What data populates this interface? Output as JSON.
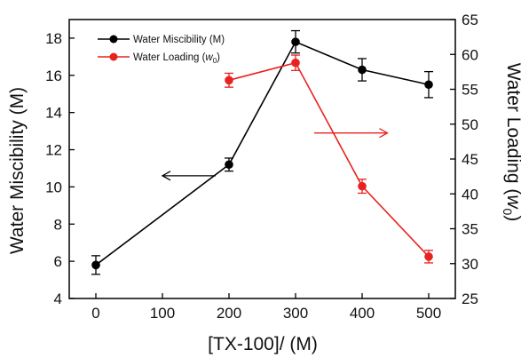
{
  "chart_data": {
    "type": "line",
    "xlabel": "[TX-100]/ (M)",
    "ylabel_left": "Water Miscibility (M)",
    "ylabel_right_main": "Water Loading (",
    "ylabel_right_w": "w",
    "ylabel_right_sub": "0",
    "ylabel_right_close": ")",
    "xlim": [
      -40,
      540
    ],
    "ylim_left": [
      4,
      19
    ],
    "ylim_right": [
      25,
      65
    ],
    "x_ticks": [
      0,
      100,
      200,
      300,
      400,
      500
    ],
    "y_left_ticks": [
      4,
      6,
      8,
      10,
      12,
      14,
      16,
      18
    ],
    "y_right_ticks": [
      25,
      30,
      35,
      40,
      45,
      50,
      55,
      60,
      65
    ],
    "legend_position": "top-left",
    "series": [
      {
        "name": "Water Miscibility (M)",
        "axis": "left",
        "color": "#000000",
        "x": [
          0,
          200,
          300,
          400,
          500
        ],
        "y": [
          5.8,
          11.2,
          17.8,
          16.3,
          15.5
        ],
        "err": [
          0.5,
          0.35,
          0.6,
          0.6,
          0.7
        ]
      },
      {
        "name": "Water Loading (w0)",
        "legend_main": "Water Loading (",
        "legend_w": "w",
        "legend_sub": "0",
        "legend_close": ")",
        "axis": "right",
        "color": "#e8231f",
        "x": [
          200,
          300,
          400,
          500
        ],
        "y": [
          56.3,
          58.8,
          41.1,
          31.0
        ],
        "err": [
          1.0,
          1.1,
          1.0,
          0.9
        ]
      }
    ],
    "annotations": [
      {
        "type": "arrow",
        "direction": "left",
        "color": "#000000",
        "meaning": "points to left axis"
      },
      {
        "type": "arrow",
        "direction": "right",
        "color": "#e8231f",
        "meaning": "points to right axis"
      }
    ]
  }
}
